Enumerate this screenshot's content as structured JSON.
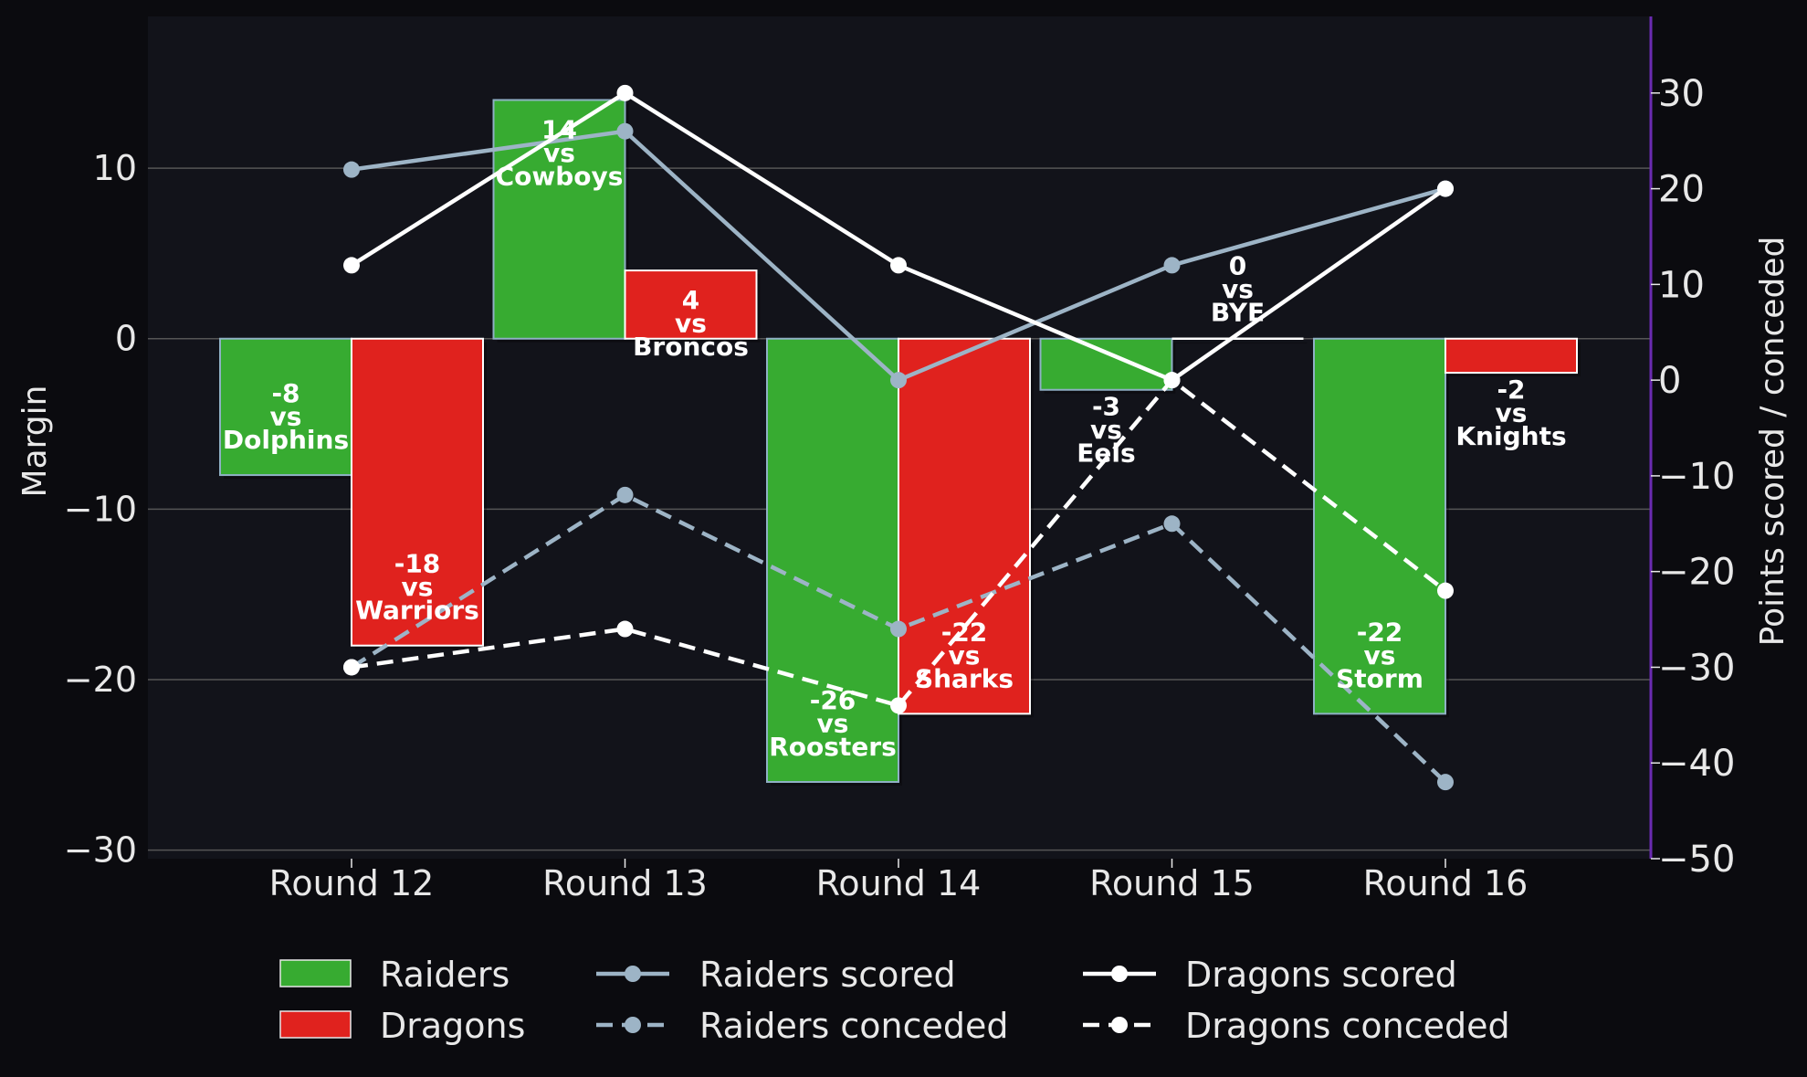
{
  "chart_data": {
    "type": "bar",
    "categories": [
      "Round 12",
      "Round 13",
      "Round 14",
      "Round 15",
      "Round 16"
    ],
    "bars": [
      {
        "name": "Raiders",
        "color": "#37ab31",
        "values": [
          -8,
          14,
          -26,
          -3,
          -22
        ],
        "labels": [
          [
            "-8",
            "vs",
            "Dolphins"
          ],
          [
            "14",
            "vs",
            "Cowboys"
          ],
          [
            "-26",
            "vs",
            "Roosters"
          ],
          [
            "-3",
            "vs",
            "Eels"
          ],
          [
            "-22",
            "vs",
            "Storm"
          ]
        ]
      },
      {
        "name": "Dragons",
        "color": "#e0221e",
        "values": [
          -18,
          4,
          -22,
          0,
          -2
        ],
        "labels": [
          [
            "-18",
            "vs",
            "Warriors"
          ],
          [
            "4",
            "vs",
            "Broncos"
          ],
          [
            "-22",
            "vs",
            "Sharks"
          ],
          [
            "0",
            "vs",
            "BYE"
          ],
          [
            "-2",
            "vs",
            "Knights"
          ]
        ]
      }
    ],
    "lines": [
      {
        "name": "Raiders scored",
        "color": "#9db4c6",
        "dash": false,
        "values": [
          22,
          26,
          0,
          12,
          20
        ]
      },
      {
        "name": "Raiders conceded",
        "color": "#9db4c6",
        "dash": true,
        "values": [
          -30,
          -12,
          -26,
          -15,
          -42
        ]
      },
      {
        "name": "Dragons scored",
        "color": "#ffffff",
        "dash": false,
        "values": [
          12,
          30,
          12,
          0,
          20
        ]
      },
      {
        "name": "Dragons conceded",
        "color": "#ffffff",
        "dash": true,
        "values": [
          -30,
          -26,
          -34,
          0,
          -22
        ]
      }
    ],
    "ylabel": "Margin",
    "y2label": "Points scored / conceded",
    "ylim": [
      -30.5,
      18.9
    ],
    "y2lim": [
      -50,
      38
    ],
    "yticks": [
      10,
      0,
      -10,
      -20,
      -30
    ],
    "y2ticks": [
      30,
      20,
      10,
      0,
      -10,
      -20,
      -30,
      -40,
      -50
    ],
    "grid": true,
    "legend_position": "bottom"
  },
  "colors": {
    "background": "#0b0b0f",
    "plot_background": "#12131a",
    "right_spine": "#6a2bb0",
    "grid": "#555555"
  }
}
